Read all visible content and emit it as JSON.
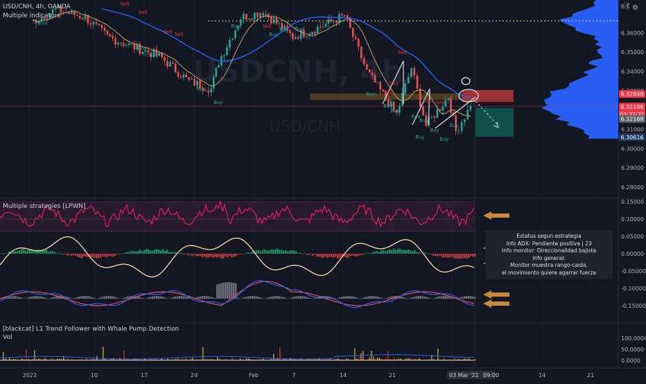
{
  "header": {
    "symbol_line": "USD/CNH, 4h, OANDA",
    "indicators_line": "Multiple indicators"
  },
  "watermark": {
    "big": "USDCNH, 4h",
    "small": "USD/CNH"
  },
  "main_axis": {
    "ticks": [
      "6.36000",
      "6.35000",
      "6.34000",
      "6.33000",
      "6.32000",
      "6.31000",
      "6.30000",
      "6.29000",
      "6.28000"
    ],
    "currency_tag": "CNH",
    "top_tick": "6.3"
  },
  "price_tags": [
    {
      "text": "6.32848",
      "color": "#f23645"
    },
    {
      "text": "6.32196",
      "color": "#f23645"
    },
    {
      "text": "03:33:21",
      "color": "#f23645"
    },
    {
      "text": "6.32168",
      "color": "#5d606b"
    },
    {
      "text": "6.30616",
      "color": "#1e3a5f"
    }
  ],
  "strategies_pane": {
    "title": "Multiple strategies [LPWN]",
    "ticks": [
      "0.15000",
      "0.10000",
      "0.05000",
      "0.00000",
      "-0.05000",
      "-0.10000",
      "-0.15000"
    ]
  },
  "info_box": {
    "lines": [
      "Estatus segun estrategia",
      "Info ADX: Pendiente positiva | 23",
      "Info monitor: Direccionalidad bajista",
      "Info general:",
      "Monitor muestra rango-caida,",
      "el movimiento quiere agarrar fuerza"
    ]
  },
  "volume_pane": {
    "title": "[blackcat] L1 Trend Follower with Whale Pump Detection",
    "subtitle": "Vol",
    "ticks": [
      "100.0000",
      "50.0000",
      "0.0000"
    ]
  },
  "time_axis": {
    "labels": [
      "2022",
      "10",
      "17",
      "24",
      "Feb",
      "7",
      "14",
      "21",
      "Mar",
      "14",
      "21"
    ],
    "current_date": "03 Mar '22",
    "current_time": "09:00"
  },
  "signals": {
    "buy_label": "Buy",
    "sell_label": "Sell"
  },
  "colors": {
    "background": "#131722",
    "up": "#26a69a",
    "down": "#ef5350",
    "ma_blue": "#2962ff",
    "oscillator": "#e91e63",
    "cream": "#ffe0b2",
    "arrow": "#c8883a",
    "profile": "#2962ff"
  },
  "chart_data": {
    "type": "candlestick",
    "symbol": "USD/CNH",
    "timeframe": "4h",
    "ylim": [
      6.275,
      6.372
    ],
    "price_points": [
      {
        "x": "2022-01-03",
        "close": 6.366
      },
      {
        "x": "2022-01-06",
        "close": 6.372
      },
      {
        "x": "2022-01-10",
        "close": 6.368
      },
      {
        "x": "2022-01-13",
        "close": 6.358
      },
      {
        "x": "2022-01-17",
        "close": 6.352
      },
      {
        "x": "2022-01-20",
        "close": 6.348
      },
      {
        "x": "2022-01-24",
        "close": 6.335
      },
      {
        "x": "2022-01-27",
        "close": 6.331
      },
      {
        "x": "2022-01-28",
        "close": 6.345
      },
      {
        "x": "2022-01-31",
        "close": 6.368
      },
      {
        "x": "2022-02-03",
        "close": 6.371
      },
      {
        "x": "2022-02-07",
        "close": 6.358
      },
      {
        "x": "2022-02-10",
        "close": 6.362
      },
      {
        "x": "2022-02-14",
        "close": 6.369
      },
      {
        "x": "2022-02-17",
        "close": 6.34
      },
      {
        "x": "2022-02-21",
        "close": 6.318
      },
      {
        "x": "2022-02-23",
        "close": 6.342
      },
      {
        "x": "2022-02-25",
        "close": 6.312
      },
      {
        "x": "2022-02-28",
        "close": 6.327
      },
      {
        "x": "2022-03-01",
        "close": 6.309
      },
      {
        "x": "2022-03-03",
        "close": 6.322
      }
    ],
    "last_price": 6.32196,
    "levels": {
      "sell_zone": [
        6.3256,
        6.3297
      ],
      "target": 6.30616,
      "dotted": 6.3662
    },
    "buy_signals": 18,
    "sell_signals": 8
  }
}
